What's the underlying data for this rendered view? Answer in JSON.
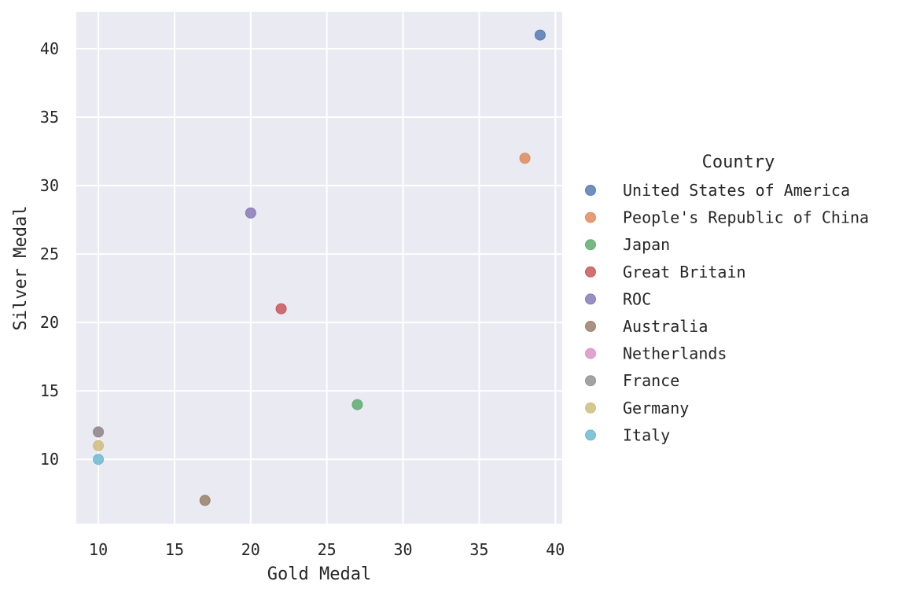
{
  "chart_data": {
    "type": "scatter",
    "title": "",
    "xlabel": "Gold Medal",
    "ylabel": "Silver Medal",
    "xlim": [
      8.55,
      40.45
    ],
    "ylim": [
      5.3,
      42.7
    ],
    "xticks": [
      10,
      15,
      20,
      25,
      30,
      35,
      40
    ],
    "yticks": [
      10,
      15,
      20,
      25,
      30,
      35,
      40
    ],
    "grid": true,
    "legend": {
      "title": "Country",
      "placement": "right"
    },
    "series": [
      {
        "name": "United States of America",
        "color": "#4c72b0",
        "points": [
          {
            "x": 39,
            "y": 41
          }
        ]
      },
      {
        "name": "People's Republic of China",
        "color": "#dd8452",
        "points": [
          {
            "x": 38,
            "y": 32
          }
        ]
      },
      {
        "name": "Japan",
        "color": "#55a868",
        "points": [
          {
            "x": 27,
            "y": 14
          }
        ]
      },
      {
        "name": "Great Britain",
        "color": "#c44e52",
        "points": [
          {
            "x": 22,
            "y": 21
          }
        ]
      },
      {
        "name": "ROC",
        "color": "#8172b3",
        "points": [
          {
            "x": 20,
            "y": 28
          }
        ]
      },
      {
        "name": "Australia",
        "color": "#937860",
        "points": [
          {
            "x": 17,
            "y": 7
          }
        ]
      },
      {
        "name": "Netherlands",
        "color": "#da8bc3",
        "points": [
          {
            "x": 10,
            "y": 12
          }
        ]
      },
      {
        "name": "France",
        "color": "#8c8c8c",
        "points": [
          {
            "x": 10,
            "y": 12
          }
        ]
      },
      {
        "name": "Germany",
        "color": "#ccb974",
        "points": [
          {
            "x": 10,
            "y": 11
          }
        ]
      },
      {
        "name": "Italy",
        "color": "#64b5cd",
        "points": [
          {
            "x": 10,
            "y": 10
          }
        ]
      }
    ]
  }
}
